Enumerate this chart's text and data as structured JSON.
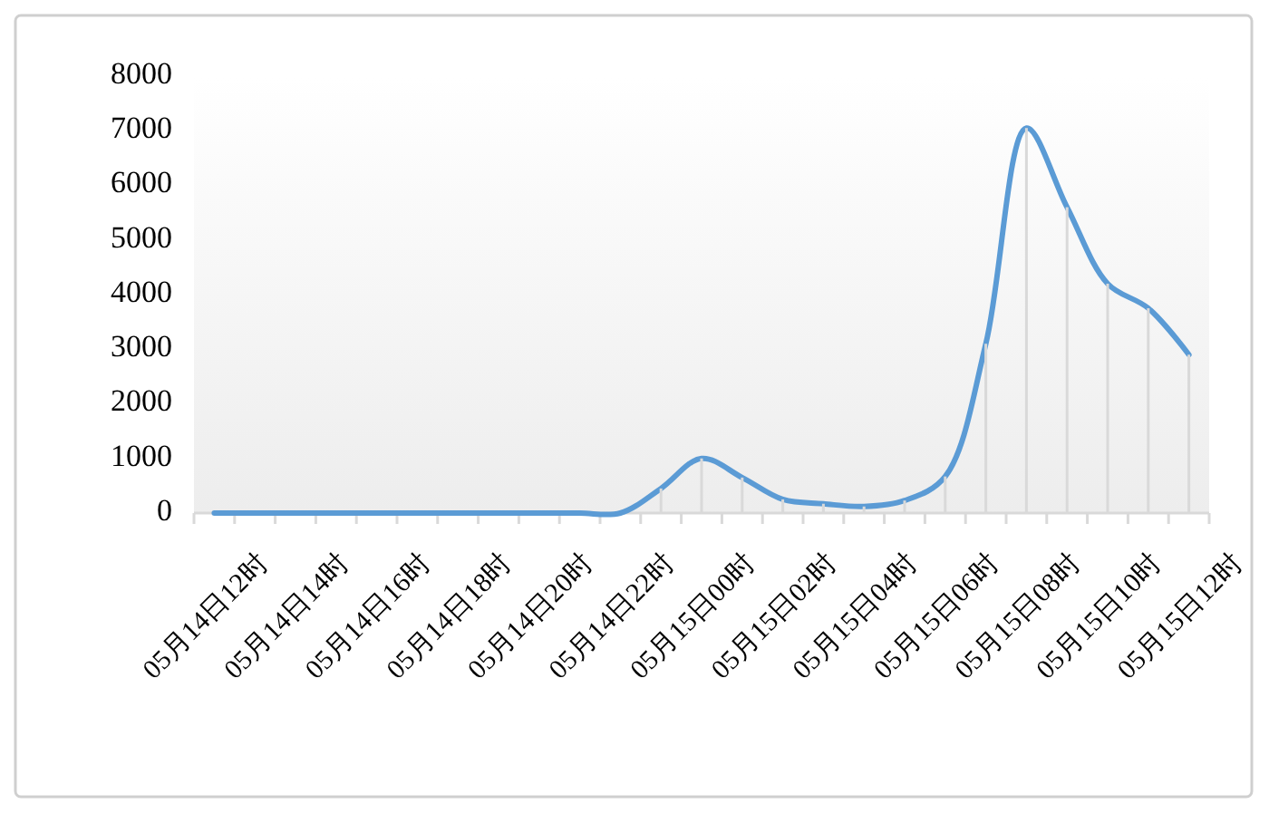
{
  "chart_data": {
    "type": "line",
    "categories": [
      "05月14日12时",
      null,
      "05月14日14时",
      null,
      "05月14日16时",
      null,
      "05月14日18时",
      null,
      "05月14日20时",
      null,
      "05月14日22时",
      null,
      "05月15日00时",
      null,
      "05月15日02时",
      null,
      "05月15日04时",
      null,
      "05月15日06时",
      null,
      "05月15日08时",
      null,
      "05月15日10时",
      null,
      "05月15日12时"
    ],
    "series": [
      {
        "color": "#5b9bd5",
        "values": [
          0,
          0,
          0,
          0,
          0,
          0,
          0,
          0,
          0,
          0,
          0,
          450,
          1000,
          650,
          250,
          170,
          120,
          230,
          670,
          3100,
          7050,
          5600,
          4200,
          3750,
          2900
        ]
      },
      {
        "type": "bar",
        "color": "#d9d9d9",
        "values": [
          0,
          0,
          0,
          0,
          0,
          0,
          0,
          0,
          0,
          0,
          0,
          450,
          1000,
          650,
          250,
          170,
          120,
          230,
          670,
          3100,
          7050,
          5600,
          4200,
          3750,
          2900
        ]
      }
    ],
    "ylim": [
      0,
      8000
    ],
    "yticks": [
      0,
      1000,
      2000,
      3000,
      4000,
      5000,
      6000,
      7000,
      8000
    ]
  }
}
